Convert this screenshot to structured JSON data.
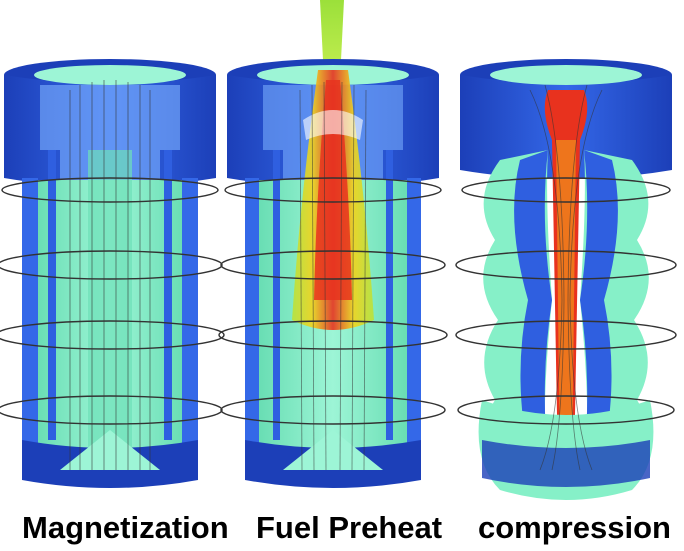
{
  "panels": [
    {
      "label": "Magnetization",
      "state": "magnetization"
    },
    {
      "label": "Fuel Preheat",
      "state": "fuel-preheat"
    },
    {
      "label": "compression",
      "state": "compression"
    }
  ],
  "colors": {
    "liner_blue": "#2f5fe0",
    "liner_blue_dark": "#1c3fb8",
    "liner_blue_light": "#6f9cf2",
    "fuel_green": "#86f0c8",
    "fuel_green_dark": "#3fbf93",
    "hot_red": "#e8321e",
    "hot_yellow": "#f2d21a",
    "laser_green": "#a8e33a",
    "field_line": "#333333",
    "caption": "#000000"
  }
}
